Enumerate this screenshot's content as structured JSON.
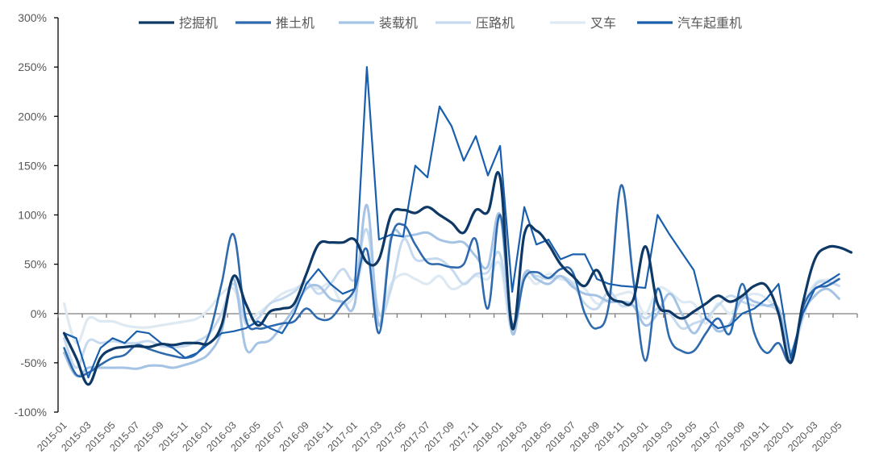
{
  "chart_data": {
    "type": "line",
    "title": "",
    "xlabel": "",
    "ylabel": "",
    "ylim": [
      -100,
      300
    ],
    "yticks": [
      -100,
      -50,
      0,
      50,
      100,
      150,
      200,
      250,
      300
    ],
    "ytick_labels": [
      "-100%",
      "-50%",
      "0%",
      "50%",
      "100%",
      "150%",
      "200%",
      "250%",
      "300%"
    ],
    "grid": false,
    "legend_position": "top",
    "x": [
      "2015-01",
      "2015-02",
      "2015-03",
      "2015-04",
      "2015-05",
      "2015-06",
      "2015-07",
      "2015-08",
      "2015-09",
      "2015-10",
      "2015-11",
      "2015-12",
      "2016-01",
      "2016-02",
      "2016-03",
      "2016-04",
      "2016-05",
      "2016-06",
      "2016-07",
      "2016-08",
      "2016-09",
      "2016-10",
      "2016-11",
      "2016-12",
      "2017-01",
      "2017-02",
      "2017-03",
      "2017-04",
      "2017-05",
      "2017-06",
      "2017-07",
      "2017-08",
      "2017-09",
      "2017-10",
      "2017-11",
      "2017-12",
      "2018-01",
      "2018-02",
      "2018-03",
      "2018-04",
      "2018-05",
      "2018-06",
      "2018-07",
      "2018-08",
      "2018-09",
      "2018-10",
      "2018-11",
      "2018-12",
      "2019-01",
      "2019-02",
      "2019-03",
      "2019-04",
      "2019-05",
      "2019-06",
      "2019-07",
      "2019-08",
      "2019-09",
      "2019-10",
      "2019-11",
      "2019-12",
      "2020-01",
      "2020-02",
      "2020-03",
      "2020-04",
      "2020-05",
      "2020-06"
    ],
    "xtick_labels": [
      "2015-01",
      "2015-03",
      "2015-05",
      "2015-07",
      "2015-09",
      "2015-11",
      "2016-01",
      "2016-03",
      "2016-05",
      "2016-07",
      "2016-09",
      "2016-11",
      "2017-01",
      "2017-03",
      "2017-05",
      "2017-07",
      "2017-09",
      "2017-11",
      "2018-01",
      "2018-03",
      "2018-05",
      "2018-07",
      "2018-09",
      "2018-11",
      "2019-01",
      "2019-03",
      "2019-05",
      "2019-07",
      "2019-09",
      "2019-11",
      "2020-01",
      "2020-03",
      "2020-05"
    ],
    "series": [
      {
        "name": "挖掘机",
        "color": "#0e3865",
        "width": 3.2,
        "values": [
          -20,
          -45,
          -72,
          -45,
          -36,
          -34,
          -33,
          -34,
          -31,
          -32,
          -30,
          -30,
          -30,
          -12,
          38,
          10,
          -12,
          2,
          5,
          10,
          40,
          70,
          72,
          72,
          75,
          52,
          55,
          100,
          105,
          102,
          108,
          100,
          92,
          82,
          105,
          103,
          138,
          -15,
          80,
          84,
          70,
          50,
          38,
          28,
          44,
          18,
          12,
          14,
          68,
          10,
          2,
          -5,
          2,
          10,
          18,
          12,
          18,
          28,
          28,
          0,
          -50,
          10,
          55,
          67,
          67,
          62
        ]
      },
      {
        "name": "推土机",
        "color": "#2e6aad",
        "width": 2.6,
        "values": [
          -35,
          -62,
          -60,
          -52,
          -45,
          -42,
          -32,
          -36,
          -40,
          -43,
          -45,
          -40,
          -20,
          30,
          80,
          -5,
          -15,
          -13,
          -10,
          -8,
          5,
          -5,
          -5,
          10,
          25,
          65,
          -20,
          75,
          90,
          70,
          52,
          50,
          47,
          50,
          75,
          5,
          100,
          -10,
          35,
          42,
          36,
          45,
          42,
          0,
          -15,
          10,
          130,
          35,
          -48,
          25,
          -25,
          -38,
          -38,
          -20,
          -5,
          -20,
          30,
          -20,
          -40,
          -30,
          -48,
          5,
          25,
          28,
          35,
          null
        ]
      },
      {
        "name": "装载机",
        "color": "#a5c3e4",
        "width": 3.0,
        "values": [
          -40,
          -63,
          -55,
          -55,
          -55,
          -55,
          -56,
          -53,
          -53,
          -55,
          -52,
          -48,
          -40,
          -18,
          35,
          -35,
          -30,
          -27,
          -12,
          5,
          25,
          28,
          15,
          12,
          10,
          110,
          -12,
          78,
          78,
          80,
          82,
          75,
          72,
          72,
          58,
          48,
          100,
          -20,
          40,
          35,
          30,
          38,
          27,
          20,
          18,
          12,
          12,
          8,
          -12,
          0,
          20,
          0,
          -20,
          -5,
          -18,
          -10,
          15,
          12,
          8,
          5,
          -38,
          0,
          18,
          25,
          15,
          null
        ]
      },
      {
        "name": "压路机",
        "color": "#c5d9ef",
        "width": 3.0,
        "values": [
          -25,
          -55,
          -28,
          -30,
          -28,
          -30,
          -30,
          -28,
          -33,
          -34,
          -33,
          -28,
          -20,
          0,
          30,
          -10,
          -5,
          10,
          15,
          22,
          32,
          20,
          30,
          45,
          35,
          85,
          0,
          25,
          75,
          55,
          55,
          55,
          45,
          30,
          40,
          42,
          60,
          -15,
          38,
          38,
          35,
          38,
          30,
          10,
          5,
          22,
          8,
          8,
          -5,
          5,
          0,
          -15,
          -10,
          -5,
          8,
          18,
          12,
          8,
          8,
          0,
          -40,
          -5,
          28,
          32,
          28,
          null
        ]
      },
      {
        "name": "叉车",
        "color": "#deeaf3",
        "width": 3.2,
        "values": [
          10,
          -30,
          -5,
          -8,
          -8,
          -12,
          -14,
          -14,
          -12,
          -10,
          -8,
          -5,
          5,
          20,
          25,
          -5,
          0,
          10,
          20,
          25,
          30,
          25,
          30,
          10,
          20,
          60,
          0,
          30,
          40,
          35,
          30,
          38,
          25,
          30,
          38,
          35,
          50,
          -18,
          35,
          30,
          40,
          35,
          32,
          25,
          10,
          15,
          20,
          20,
          0,
          25,
          22,
          12,
          10,
          -10,
          10,
          0,
          15,
          20,
          15,
          0,
          -45,
          5,
          30,
          34,
          35,
          null
        ]
      },
      {
        "name": "汽车起重机",
        "color": "#1a5fae",
        "width": 2.2,
        "values": [
          -20,
          -25,
          -65,
          -35,
          -25,
          -30,
          -18,
          -20,
          -30,
          -35,
          -45,
          -40,
          -30,
          -20,
          -18,
          -15,
          -8,
          -15,
          -20,
          0,
          30,
          45,
          30,
          20,
          25,
          250,
          75,
          80,
          78,
          150,
          138,
          210,
          190,
          155,
          180,
          140,
          170,
          22,
          108,
          70,
          75,
          55,
          60,
          60,
          35,
          30,
          28,
          27,
          26,
          100,
          80,
          62,
          44,
          -5,
          -15,
          -12,
          0,
          5,
          15,
          30,
          -45,
          0,
          25,
          32,
          40,
          null
        ]
      }
    ]
  },
  "legend": {
    "items": [
      "挖掘机",
      "推土机",
      "装载机",
      "压路机",
      "叉车",
      "汽车起重机"
    ]
  }
}
